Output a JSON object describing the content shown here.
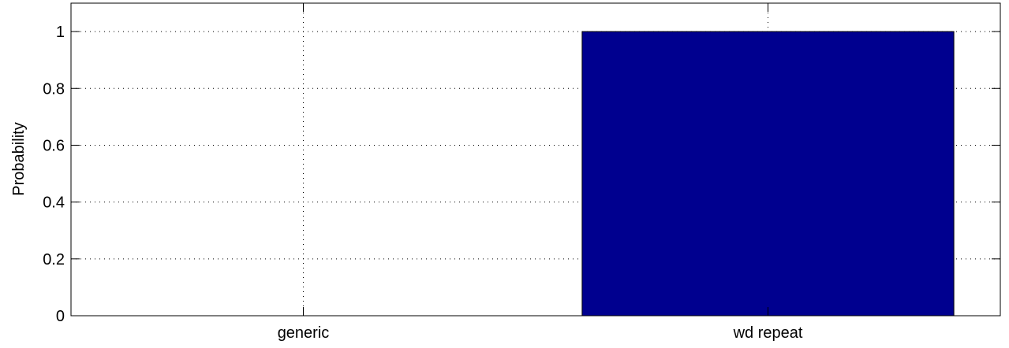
{
  "chart_data": {
    "type": "bar",
    "categories": [
      "generic",
      "wd repeat"
    ],
    "values": [
      0,
      1
    ],
    "title": "",
    "xlabel": "",
    "ylabel": "Probability",
    "ylim": [
      0,
      1.1
    ],
    "yticks": [
      0,
      0.2,
      0.4,
      0.6,
      0.8,
      1
    ],
    "ytick_labels": [
      "0",
      "0.2",
      "0.4",
      "0.6",
      "0.8",
      "1"
    ],
    "grid": true,
    "bar_color": "#00008f",
    "legend": "none"
  }
}
